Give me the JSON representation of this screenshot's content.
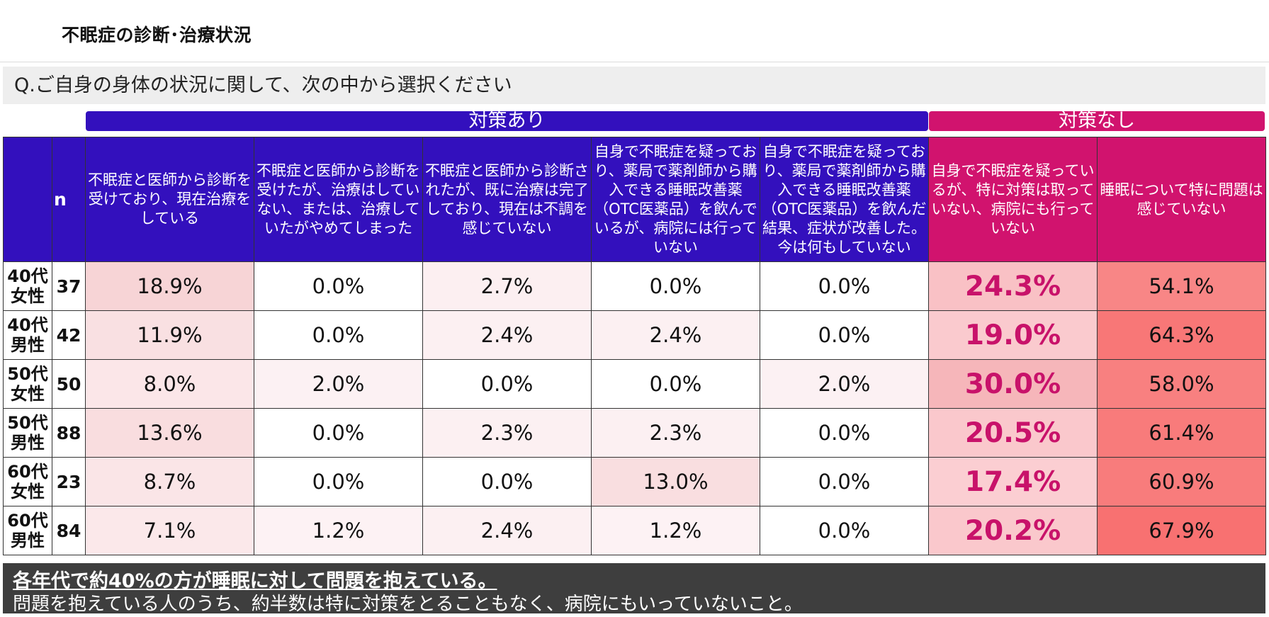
{
  "title": "不眠症の診断･治療状況",
  "question": "Q.ご自身の身体の状況に関して、次の中から選択ください",
  "groups": {
    "with_measures": "対策あり",
    "without_measures": "対策なし"
  },
  "colors": {
    "yes_header": "#3310bd",
    "no_header": "#d1136e",
    "highlight_text": "#c8126a"
  },
  "columns": {
    "n": "n",
    "c1": "不眠症と医師から診断を受けており、現在治療をしている",
    "c2": "不眠症と医師から診断を受けたが、治療はしていない、または、治療していたがやめてしまった",
    "c3": "不眠症と医師から診断されたが、既に治療は完了しており、現在は不調を感じていない",
    "c4": "自身で不眠症を疑っており、薬局で薬剤師から購入できる睡眠改善薬（OTC医薬品）を飲んでいるが、病院には行っていない",
    "c5": "自身で不眠症を疑っており、薬局で薬剤師から購入できる睡眠改善薬（OTC医薬品）を飲んだ結果、症状が改善した。今は何もしていない",
    "c6": "自身で不眠症を疑っているが、特に対策は取っていない、病院にも行っていない",
    "c7": "睡眠について特に問題は感じていない"
  },
  "rows": [
    {
      "group": "40代\n女性",
      "n": "37",
      "values": [
        "18.9%",
        "0.0%",
        "2.7%",
        "0.0%",
        "0.0%",
        "24.3%",
        "54.1%"
      ]
    },
    {
      "group": "40代\n男性",
      "n": "42",
      "values": [
        "11.9%",
        "0.0%",
        "2.4%",
        "2.4%",
        "0.0%",
        "19.0%",
        "64.3%"
      ]
    },
    {
      "group": "50代\n女性",
      "n": "50",
      "values": [
        "8.0%",
        "2.0%",
        "0.0%",
        "0.0%",
        "2.0%",
        "30.0%",
        "58.0%"
      ]
    },
    {
      "group": "50代\n男性",
      "n": "88",
      "values": [
        "13.6%",
        "0.0%",
        "2.3%",
        "2.3%",
        "0.0%",
        "20.5%",
        "61.4%"
      ]
    },
    {
      "group": "60代\n女性",
      "n": "23",
      "values": [
        "8.7%",
        "0.0%",
        "0.0%",
        "13.0%",
        "0.0%",
        "17.4%",
        "60.9%"
      ]
    },
    {
      "group": "60代\n男性",
      "n": "84",
      "values": [
        "7.1%",
        "1.2%",
        "2.4%",
        "1.2%",
        "0.0%",
        "20.2%",
        "67.9%"
      ]
    }
  ],
  "summary": {
    "line1": "各年代で約40%の方が睡眠に対して問題を抱えている。",
    "line2": "問題を抱えている人のうち、約半数は特に対策をとることもなく、病院にもいっていないこと。"
  }
}
